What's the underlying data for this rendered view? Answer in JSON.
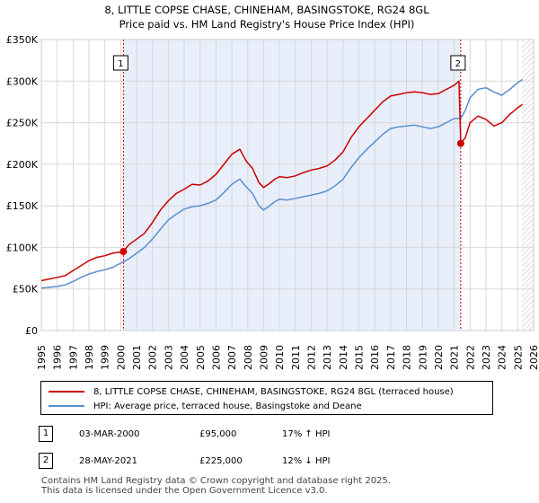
{
  "chart_data": {
    "type": "line",
    "title": "8, LITTLE COPSE CHASE, CHINEHAM, BASINGSTOKE, RG24 8GL",
    "subtitle": "Price paid vs. HM Land Registry's House Price Index (HPI)",
    "xlabel": "",
    "ylabel": "",
    "xlim": [
      1995,
      2026
    ],
    "ylim": [
      0,
      350000
    ],
    "y_ticks": [
      0,
      50000,
      100000,
      150000,
      200000,
      250000,
      300000,
      350000
    ],
    "y_tick_labels": [
      "£0",
      "£50K",
      "£100K",
      "£150K",
      "£200K",
      "£250K",
      "£300K",
      "£350K"
    ],
    "x_ticks": [
      1995,
      1996,
      1997,
      1998,
      1999,
      2000,
      2001,
      2002,
      2003,
      2004,
      2005,
      2006,
      2007,
      2008,
      2009,
      2010,
      2011,
      2012,
      2013,
      2014,
      2015,
      2016,
      2017,
      2018,
      2019,
      2020,
      2021,
      2022,
      2023,
      2024,
      2025,
      2026
    ],
    "x_tick_labels": [
      "1995",
      "1996",
      "1997",
      "1998",
      "1999",
      "2000",
      "2001",
      "2002",
      "2003",
      "2004",
      "2005",
      "2006",
      "2007",
      "2008",
      "2009",
      "2010",
      "2011",
      "2012",
      "2013",
      "2014",
      "2015",
      "2016",
      "2017",
      "2018",
      "2019",
      "2020",
      "2021",
      "2022",
      "2023",
      "2024",
      "2025",
      "2026"
    ],
    "shaded_region": [
      2000.17,
      2021.41
    ],
    "future_hatch_from": 2025.25,
    "series": [
      {
        "name": "8, LITTLE COPSE CHASE, CHINEHAM, BASINGSTOKE, RG24 8GL (terraced house)",
        "color": "#cc0000",
        "x": [
          1995.0,
          1995.5,
          1996.0,
          1996.5,
          1997.0,
          1997.5,
          1998.0,
          1998.5,
          1999.0,
          1999.5,
          2000.17,
          2000.5,
          2001.0,
          2001.5,
          2002.0,
          2002.5,
          2003.0,
          2003.5,
          2004.0,
          2004.5,
          2005.0,
          2005.5,
          2006.0,
          2006.5,
          2007.0,
          2007.5,
          2007.9,
          2008.3,
          2008.7,
          2009.0,
          2009.3,
          2009.7,
          2010.0,
          2010.5,
          2011.0,
          2011.5,
          2012.0,
          2012.5,
          2013.0,
          2013.5,
          2014.0,
          2014.5,
          2015.0,
          2015.5,
          2016.0,
          2016.5,
          2017.0,
          2017.5,
          2018.0,
          2018.5,
          2019.0,
          2019.5,
          2020.0,
          2020.5,
          2021.0,
          2021.3,
          2021.41,
          2021.7,
          2022.0,
          2022.5,
          2023.0,
          2023.5,
          2024.0,
          2024.5,
          2025.0,
          2025.3
        ],
        "values": [
          60000,
          62000,
          64000,
          66000,
          72000,
          78000,
          84000,
          88000,
          90000,
          93000,
          95000,
          103000,
          110000,
          117000,
          130000,
          145000,
          156000,
          165000,
          170000,
          176000,
          175000,
          180000,
          188000,
          200000,
          212000,
          218000,
          204000,
          195000,
          178000,
          172000,
          176000,
          182000,
          185000,
          184000,
          186000,
          190000,
          193000,
          195000,
          198000,
          205000,
          215000,
          232000,
          245000,
          255000,
          265000,
          275000,
          282000,
          284000,
          286000,
          287000,
          286000,
          284000,
          285000,
          290000,
          295000,
          300000,
          225000,
          232000,
          250000,
          258000,
          254000,
          246000,
          250000,
          260000,
          268000,
          272000
        ]
      },
      {
        "name": "HPI: Average price, terraced house, Basingstoke and Deane",
        "color": "#5b8fd0",
        "x": [
          1995.0,
          1995.5,
          1996.0,
          1996.5,
          1997.0,
          1997.5,
          1998.0,
          1998.5,
          1999.0,
          1999.5,
          2000.0,
          2000.5,
          2001.0,
          2001.5,
          2002.0,
          2002.5,
          2003.0,
          2003.5,
          2004.0,
          2004.5,
          2005.0,
          2005.5,
          2006.0,
          2006.5,
          2007.0,
          2007.5,
          2007.9,
          2008.3,
          2008.7,
          2009.0,
          2009.3,
          2009.7,
          2010.0,
          2010.5,
          2011.0,
          2011.5,
          2012.0,
          2012.5,
          2013.0,
          2013.5,
          2014.0,
          2014.5,
          2015.0,
          2015.5,
          2016.0,
          2016.5,
          2017.0,
          2017.5,
          2018.0,
          2018.5,
          2019.0,
          2019.5,
          2020.0,
          2020.5,
          2021.0,
          2021.41,
          2021.7,
          2022.0,
          2022.5,
          2023.0,
          2023.5,
          2024.0,
          2024.5,
          2025.0,
          2025.3
        ],
        "values": [
          51000,
          52000,
          53000,
          55000,
          59000,
          64000,
          68000,
          71000,
          73000,
          76000,
          81000,
          86000,
          93000,
          100000,
          110000,
          122000,
          133000,
          140000,
          146000,
          149000,
          150000,
          153000,
          157000,
          166000,
          176000,
          182000,
          173000,
          165000,
          150000,
          145000,
          149000,
          155000,
          158000,
          157000,
          159000,
          161000,
          163000,
          165000,
          168000,
          174000,
          182000,
          196000,
          208000,
          218000,
          227000,
          236000,
          243000,
          245000,
          246000,
          247000,
          245000,
          243000,
          245000,
          250000,
          255000,
          255000,
          265000,
          280000,
          290000,
          292000,
          287000,
          283000,
          290000,
          298000,
          302000
        ]
      }
    ],
    "annotations": [
      {
        "label": "1",
        "x": 2000.17,
        "value": 95000
      },
      {
        "label": "2",
        "x": 2021.41,
        "value": 225000
      }
    ]
  },
  "legend": {
    "property_label": "8, LITTLE COPSE CHASE, CHINEHAM, BASINGSTOKE, RG24 8GL (terraced house)",
    "hpi_label": "HPI: Average price, terraced house, Basingstoke and Deane",
    "property_color": "#cc0000",
    "hpi_color": "#5b8fd0"
  },
  "sales": [
    {
      "marker": "1",
      "date": "03-MAR-2000",
      "price": "£95,000",
      "hpi_change": "17% ↑ HPI"
    },
    {
      "marker": "2",
      "date": "28-MAY-2021",
      "price": "£225,000",
      "hpi_change": "12% ↓ HPI"
    }
  ],
  "footer": {
    "line1": "Contains HM Land Registry data © Crown copyright and database right 2025.",
    "line2": "This data is licensed under the Open Government Licence v3.0."
  }
}
